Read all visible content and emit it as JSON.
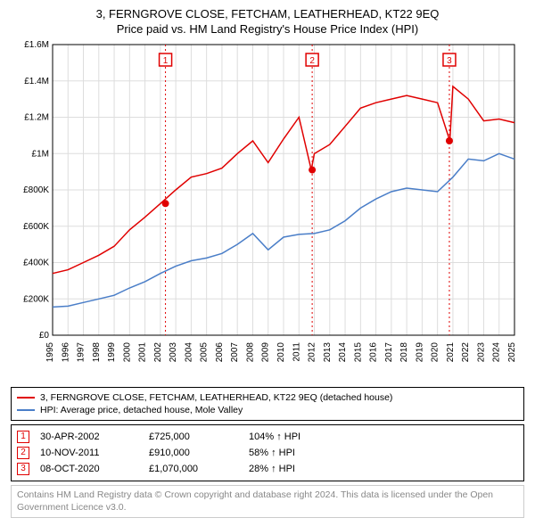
{
  "title_main": "3, FERNGROVE CLOSE, FETCHAM, LEATHERHEAD, KT22 9EQ",
  "title_sub": "Price paid vs. HM Land Registry's House Price Index (HPI)",
  "chart": {
    "type": "line",
    "background_color": "#ffffff",
    "axis_color": "#000000",
    "grid_color": "#dddddd",
    "ylim": [
      0,
      1600000
    ],
    "ytick_step": 200000,
    "ytick_labels": [
      "£0",
      "£200K",
      "£400K",
      "£600K",
      "£800K",
      "£1M",
      "£1.2M",
      "£1.4M",
      "£1.6M"
    ],
    "x_years": [
      1995,
      1996,
      1997,
      1998,
      1999,
      2000,
      2001,
      2002,
      2003,
      2004,
      2005,
      2006,
      2007,
      2008,
      2009,
      2010,
      2011,
      2012,
      2013,
      2014,
      2015,
      2016,
      2017,
      2018,
      2019,
      2020,
      2021,
      2022,
      2023,
      2024,
      2025
    ],
    "series": [
      {
        "name": "3, FERNGROVE CLOSE, FETCHAM, LEATHERHEAD, KT22 9EQ (detached house)",
        "color": "#e00000",
        "line_width": 1.5,
        "values_by_year": {
          "1995": 340000,
          "1996": 360000,
          "1997": 400000,
          "1998": 440000,
          "1999": 490000,
          "2000": 580000,
          "2001": 650000,
          "2002": 725000,
          "2003": 800000,
          "2004": 870000,
          "2005": 890000,
          "2006": 920000,
          "2007": 1000000,
          "2008": 1070000,
          "2009": 950000,
          "2010": 1080000,
          "2011": 1200000,
          "2011.8": 910000,
          "2012": 1000000,
          "2013": 1050000,
          "2014": 1150000,
          "2015": 1250000,
          "2016": 1280000,
          "2017": 1300000,
          "2018": 1320000,
          "2019": 1300000,
          "2020": 1280000,
          "2020.8": 1070000,
          "2021": 1370000,
          "2022": 1300000,
          "2023": 1180000,
          "2024": 1190000,
          "2025": 1170000
        }
      },
      {
        "name": "HPI: Average price, detached house, Mole Valley",
        "color": "#4a7ec8",
        "line_width": 1.5,
        "values_by_year": {
          "1995": 155000,
          "1996": 160000,
          "1997": 180000,
          "1998": 200000,
          "1999": 220000,
          "2000": 260000,
          "2001": 295000,
          "2002": 340000,
          "2003": 380000,
          "2004": 410000,
          "2005": 425000,
          "2006": 450000,
          "2007": 500000,
          "2008": 560000,
          "2009": 470000,
          "2010": 540000,
          "2011": 555000,
          "2012": 560000,
          "2013": 580000,
          "2014": 630000,
          "2015": 700000,
          "2016": 750000,
          "2017": 790000,
          "2018": 810000,
          "2019": 800000,
          "2020": 790000,
          "2021": 870000,
          "2022": 970000,
          "2023": 960000,
          "2024": 1000000,
          "2025": 970000
        }
      }
    ],
    "sale_markers": [
      {
        "n": "1",
        "x_year": 2002.33,
        "y": 725000,
        "vline_color": "#e00000"
      },
      {
        "n": "2",
        "x_year": 2011.86,
        "y": 910000,
        "vline_color": "#e00000"
      },
      {
        "n": "3",
        "x_year": 2020.77,
        "y": 1070000,
        "vline_color": "#e00000"
      }
    ],
    "marker_box_border": "#e00000",
    "marker_text_color": "#e00000",
    "title_fontsize": 13,
    "tick_fontsize": 10
  },
  "legend": {
    "items": [
      {
        "color": "#e00000",
        "label": "3, FERNGROVE CLOSE, FETCHAM, LEATHERHEAD, KT22 9EQ (detached house)"
      },
      {
        "color": "#4a7ec8",
        "label": "HPI: Average price, detached house, Mole Valley"
      }
    ]
  },
  "sales": [
    {
      "n": "1",
      "date": "30-APR-2002",
      "price": "£725,000",
      "pct": "104% ↑ HPI"
    },
    {
      "n": "2",
      "date": "10-NOV-2011",
      "price": "£910,000",
      "pct": "58% ↑ HPI"
    },
    {
      "n": "3",
      "date": "08-OCT-2020",
      "price": "£1,070,000",
      "pct": "28% ↑ HPI"
    }
  ],
  "attribution": "Contains HM Land Registry data © Crown copyright and database right 2024. This data is licensed under the Open Government Licence v3.0."
}
